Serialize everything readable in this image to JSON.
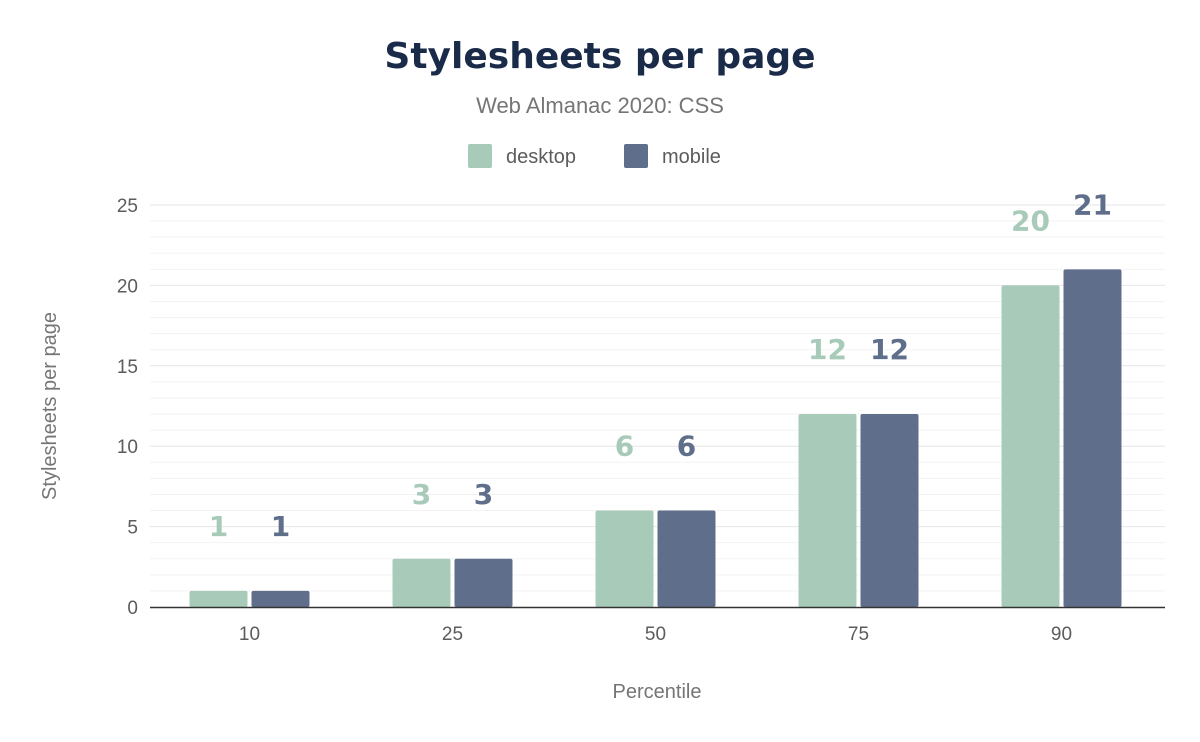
{
  "chart_data": {
    "type": "bar",
    "title": "Stylesheets per page",
    "subtitle": "Web Almanac 2020: CSS",
    "xlabel": "Percentile",
    "ylabel": "Stylesheets per page",
    "categories": [
      "10",
      "25",
      "50",
      "75",
      "90"
    ],
    "series": [
      {
        "name": "desktop",
        "color": "#a8cbb9",
        "values": [
          1,
          3,
          6,
          12,
          20
        ]
      },
      {
        "name": "mobile",
        "color": "#5f6e8a",
        "values": [
          1,
          3,
          6,
          12,
          21
        ]
      }
    ],
    "ylim": [
      0,
      25
    ],
    "yticks": [
      0,
      5,
      10,
      15,
      20,
      25
    ],
    "grid": true,
    "legend": "top-center",
    "data_labels": true
  }
}
